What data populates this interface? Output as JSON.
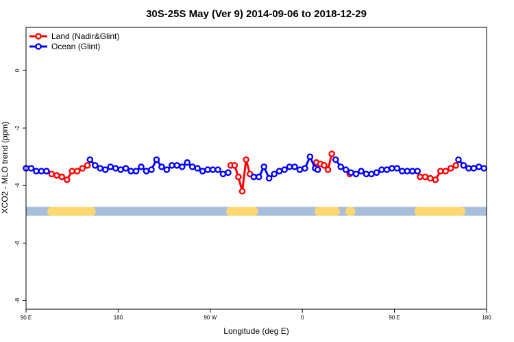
{
  "chart_data": {
    "type": "line",
    "title": "30S-25S May (Ver 9)   2014-09-06 to 2018-12-29",
    "xlabel": "Longitude (deg E)",
    "ylabel": "XCO2 - MLO trend (ppm)",
    "xlim": [
      0,
      360
    ],
    "ylim": [
      -8.3,
      1.5
    ],
    "x_ticks": [
      {
        "value": 0,
        "label": "90 E"
      },
      {
        "value": 72,
        "label": "180"
      },
      {
        "value": 144,
        "label": "90 W"
      },
      {
        "value": 216,
        "label": "0"
      },
      {
        "value": 288,
        "label": "90 E"
      },
      {
        "value": 360,
        "label": "180"
      }
    ],
    "y_ticks": [
      {
        "value": 0,
        "label": "0"
      },
      {
        "value": -2,
        "label": "-2"
      },
      {
        "value": -4,
        "label": "-4"
      },
      {
        "value": -6,
        "label": "-6"
      },
      {
        "value": -8,
        "label": "-8"
      }
    ],
    "grid": false,
    "legend_position": "top-left",
    "land_mask": {
      "y": -4.9,
      "ocean_color": "#a6bddb",
      "land_color": "#fdd870",
      "land_segments": [
        [
          20,
          51
        ],
        [
          160,
          178
        ],
        [
          229,
          242
        ],
        [
          253,
          254
        ],
        [
          307,
          340
        ]
      ]
    },
    "series": [
      {
        "name": "Land (Nadir&Glint)",
        "color": "#ff0000",
        "segments": [
          [
            [
              20,
              -3.6
            ],
            [
              24,
              -3.65
            ],
            [
              28,
              -3.7
            ],
            [
              32,
              -3.8
            ],
            [
              36,
              -3.5
            ],
            [
              40,
              -3.5
            ],
            [
              44,
              -3.4
            ],
            [
              48,
              -3.3
            ]
          ],
          [
            [
              160,
              -3.3
            ],
            [
              163,
              -3.3
            ],
            [
              166,
              -3.7
            ],
            [
              169,
              -4.2
            ],
            [
              172,
              -3.1
            ],
            [
              175,
              -3.6
            ]
          ],
          [
            [
              227,
              -3.2
            ],
            [
              230,
              -3.25
            ],
            [
              233,
              -3.3
            ],
            [
              236,
              -3.45
            ],
            [
              239,
              -2.9
            ]
          ],
          [
            [
              253,
              -3.6
            ]
          ],
          [
            [
              308,
              -3.7
            ],
            [
              312,
              -3.7
            ],
            [
              316,
              -3.75
            ],
            [
              320,
              -3.8
            ],
            [
              324,
              -3.5
            ],
            [
              328,
              -3.5
            ],
            [
              332,
              -3.4
            ],
            [
              336,
              -3.3
            ]
          ]
        ]
      },
      {
        "name": "Ocean (Glint)",
        "color": "#0000ff",
        "segments": [
          [
            [
              0,
              -3.4
            ],
            [
              4,
              -3.4
            ],
            [
              8,
              -3.5
            ],
            [
              12,
              -3.5
            ],
            [
              16,
              -3.5
            ]
          ],
          [
            [
              50,
              -3.1
            ],
            [
              54,
              -3.3
            ],
            [
              58,
              -3.4
            ],
            [
              62,
              -3.45
            ],
            [
              66,
              -3.35
            ],
            [
              70,
              -3.4
            ],
            [
              74,
              -3.45
            ],
            [
              78,
              -3.4
            ],
            [
              82,
              -3.5
            ],
            [
              86,
              -3.5
            ],
            [
              90,
              -3.35
            ],
            [
              94,
              -3.5
            ],
            [
              98,
              -3.45
            ],
            [
              102,
              -3.1
            ],
            [
              106,
              -3.35
            ],
            [
              110,
              -3.45
            ],
            [
              114,
              -3.3
            ],
            [
              118,
              -3.3
            ],
            [
              122,
              -3.35
            ],
            [
              126,
              -3.2
            ],
            [
              130,
              -3.35
            ],
            [
              134,
              -3.4
            ],
            [
              138,
              -3.5
            ],
            [
              142,
              -3.45
            ],
            [
              146,
              -3.45
            ],
            [
              150,
              -3.45
            ],
            [
              154,
              -3.6
            ],
            [
              158,
              -3.55
            ]
          ],
          [
            [
              178,
              -3.7
            ],
            [
              182,
              -3.7
            ],
            [
              186,
              -3.35
            ],
            [
              190,
              -3.75
            ],
            [
              194,
              -3.6
            ],
            [
              198,
              -3.5
            ],
            [
              202,
              -3.45
            ],
            [
              206,
              -3.35
            ],
            [
              210,
              -3.35
            ],
            [
              214,
              -3.45
            ],
            [
              218,
              -3.4
            ],
            [
              222,
              -3.0
            ],
            [
              226,
              -3.4
            ],
            [
              228,
              -3.45
            ]
          ],
          [
            [
              242,
              -3.1
            ],
            [
              246,
              -3.35
            ],
            [
              250,
              -3.45
            ],
            [
              254,
              -3.55
            ],
            [
              258,
              -3.6
            ],
            [
              262,
              -3.5
            ],
            [
              266,
              -3.6
            ],
            [
              270,
              -3.6
            ],
            [
              274,
              -3.55
            ],
            [
              278,
              -3.45
            ],
            [
              282,
              -3.45
            ],
            [
              286,
              -3.4
            ],
            [
              290,
              -3.4
            ],
            [
              294,
              -3.5
            ],
            [
              298,
              -3.5
            ],
            [
              302,
              -3.5
            ],
            [
              306,
              -3.5
            ]
          ],
          [
            [
              338,
              -3.1
            ],
            [
              342,
              -3.3
            ],
            [
              346,
              -3.4
            ],
            [
              350,
              -3.4
            ],
            [
              354,
              -3.35
            ],
            [
              358,
              -3.4
            ]
          ]
        ]
      }
    ]
  }
}
